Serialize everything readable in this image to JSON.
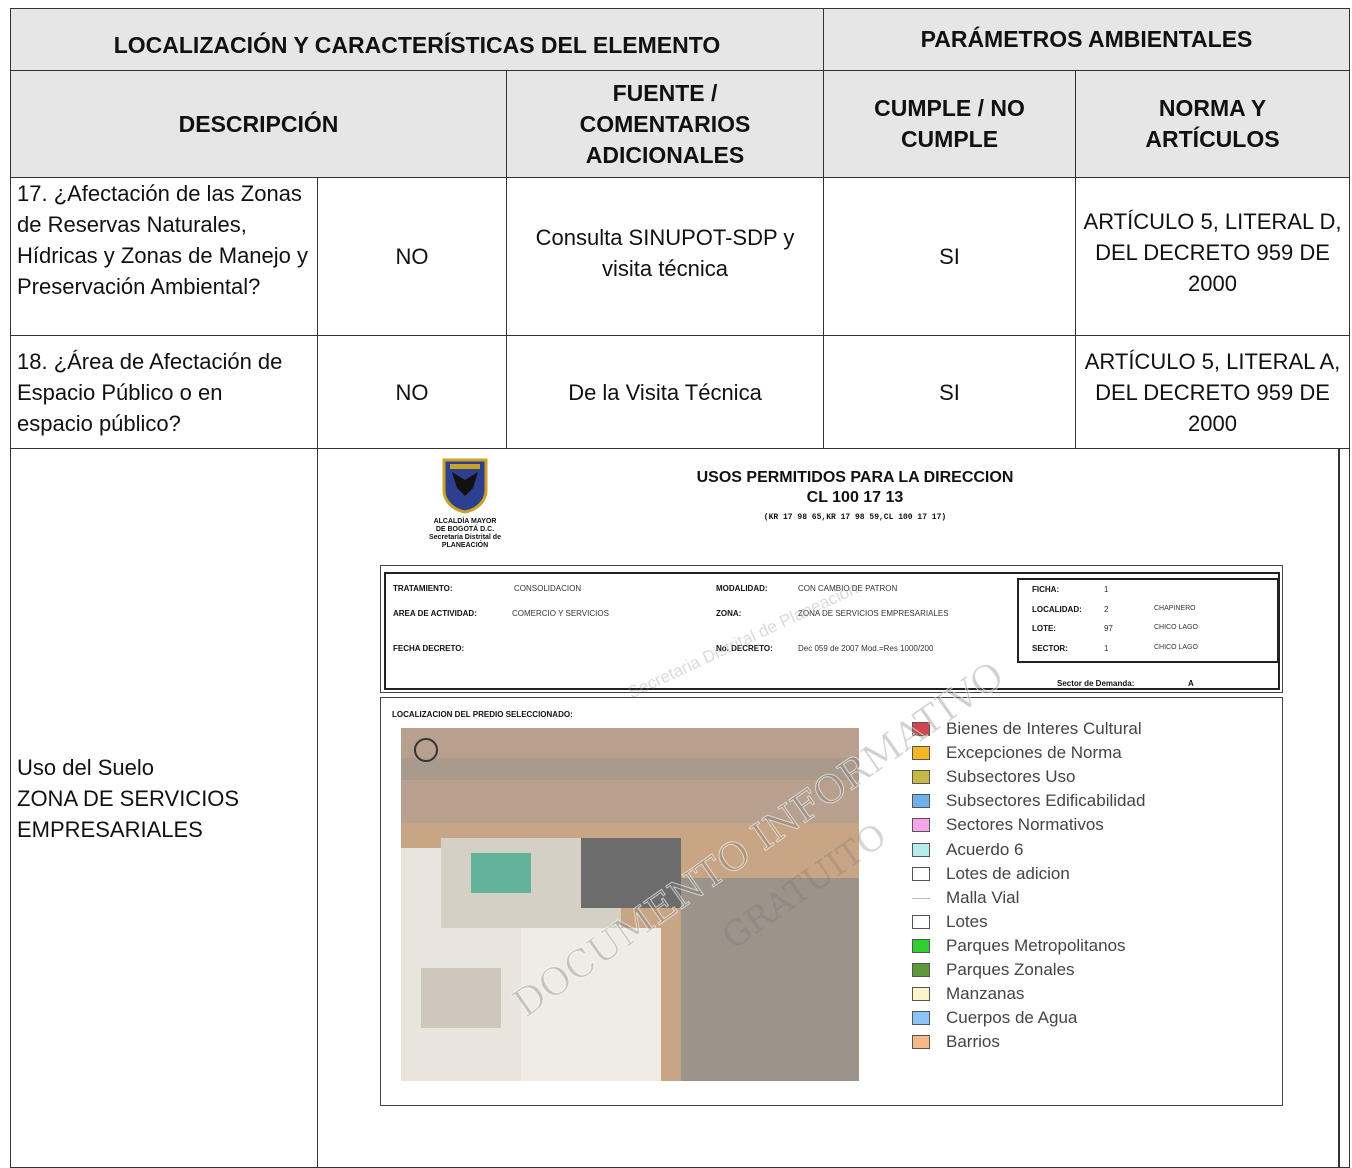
{
  "header": {
    "left_title": "LOCALIZACIÓN Y CARACTERÍSTICAS DEL ELEMENTO",
    "right_title": "PARÁMETROS AMBIENTALES",
    "columns": [
      "DESCRIPCIÓN",
      "FUENTE / COMENTARIOS ADICIONALES",
      "CUMPLE / NO CUMPLE",
      "NORMA Y ARTÍCULOS"
    ]
  },
  "rows": [
    {
      "question": "17. ¿Afectación de las Zonas de Reservas Naturales, Hídricas y Zonas de Manejo y Preservación Ambiental?",
      "answer": "NO",
      "source": "Consulta SINUPOT-SDP y visita técnica",
      "complies": "SI",
      "norm": "ARTÍCULO 5, LITERAL D, DEL DECRETO 959 DE 2000"
    },
    {
      "question": "18. ¿Área de Afectación de Espacio Público o en espacio público?",
      "answer": "NO",
      "source": "De la Visita Técnica",
      "complies": "SI",
      "norm": "ARTÍCULO 5, LITERAL A, DEL DECRETO 959 DE 2000"
    }
  ],
  "land_use": {
    "label": [
      "Uso del Suelo",
      "ZONA DE SERVICIOS EMPRESARIALES"
    ]
  },
  "map_sheet": {
    "logo_text": [
      "ALCALDÍA MAYOR",
      "DE BOGOTÁ D.C.",
      "Secretaría Distrital de",
      "PLANEACIÓN"
    ],
    "title": "USOS PERMITIDOS PARA LA DIRECCION",
    "address": "CL 100 17 13",
    "addresses": "(KR 17 98 65,KR 17 98 59,CL 100 17 17)",
    "fields": [
      {
        "label": "TRATAMIENTO:",
        "value": "CONSOLIDACION"
      },
      {
        "label": "AREA DE ACTIVIDAD:",
        "value": "COMERCIO Y SERVICIOS"
      },
      {
        "label": "FECHA DECRETO:",
        "value": ""
      },
      {
        "label": "MODALIDAD:",
        "value": "CON CAMBIO DE PATRON"
      },
      {
        "label": "ZONA:",
        "value": "ZONA DE SERVICIOS EMPRESARIALES"
      },
      {
        "label": "No. DECRETO:",
        "value": "Dec 059 de 2007 Mod.=Res 1000/200"
      }
    ],
    "ficha": [
      {
        "label": "FICHA:",
        "value": "1",
        "name": ""
      },
      {
        "label": "LOCALIDAD:",
        "value": "2",
        "name": "CHAPINERO"
      },
      {
        "label": "LOTE:",
        "value": "97",
        "name": "CHICO LAGO"
      },
      {
        "label": "SECTOR:",
        "value": "1",
        "name": "CHICO LAGO"
      }
    ],
    "demand_label": "Sector de Demanda:",
    "demand_value": "A",
    "location_label": "LOCALIZACION DEL PREDIO SELECCIONADO:",
    "legend": [
      {
        "name": "Bienes de Interes Cultural",
        "color": "#d0454f"
      },
      {
        "name": "Excepciones de Norma",
        "color": "#f3b626"
      },
      {
        "name": "Subsectores Uso",
        "color": "#c8b846"
      },
      {
        "name": "Subsectores Edificabilidad",
        "color": "#6fb0e8"
      },
      {
        "name": "Sectores Normativos",
        "color": "#f4a6e8"
      },
      {
        "name": "Acuerdo 6",
        "color": "#b6ecec"
      },
      {
        "name": "Lotes de adicion",
        "color": "#ffffff"
      },
      {
        "name": "Malla Vial",
        "color": "none"
      },
      {
        "name": "Lotes",
        "color": "#ffffff"
      },
      {
        "name": "Parques Metropolitanos",
        "color": "#2fcf2f"
      },
      {
        "name": "Parques Zonales",
        "color": "#5a9a3a"
      },
      {
        "name": "Manzanas",
        "color": "#fbf5c8"
      },
      {
        "name": "Cuerpos de Agua",
        "color": "#8ac4f8"
      },
      {
        "name": "Barrios",
        "color": "#f6b88a"
      }
    ],
    "watermarks": [
      "DOCUMENTO INFORMATIVO",
      "GRATUITO",
      "Secretaria Distrital de Planeacion"
    ]
  }
}
